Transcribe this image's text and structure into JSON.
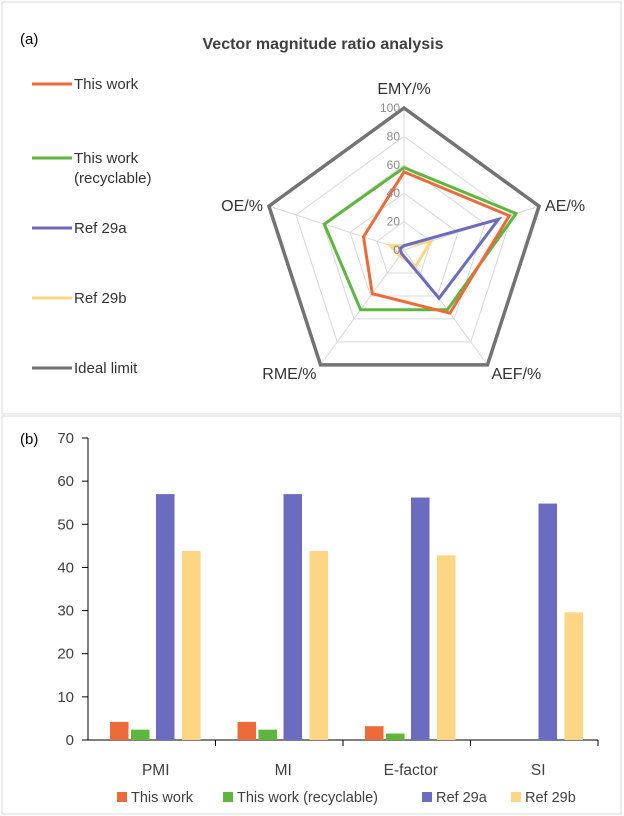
{
  "radar": {
    "panel_label": "(a)",
    "chart_data": {
      "type": "radar",
      "title": "Vector magnitude ratio analysis",
      "axes": [
        "EMY/%",
        "AE/%",
        "AEF/%",
        "RME/%",
        "OE/%"
      ],
      "rlim": [
        0,
        100
      ],
      "ticks": [
        0,
        20,
        40,
        60,
        80,
        100
      ],
      "series": [
        {
          "name": "This work",
          "color": "#ed6b3a",
          "values": [
            55,
            78,
            55,
            38,
            30
          ]
        },
        {
          "name": "This work\n(recyclable)",
          "color": "#5fb63f",
          "values": [
            58,
            83,
            52,
            52,
            59
          ]
        },
        {
          "name": "Ref 29a",
          "color": "#6b6bbf",
          "values": [
            3,
            70,
            42,
            3,
            3
          ]
        },
        {
          "name": "Ref 29b",
          "color": "#fcd685",
          "values": [
            3,
            20,
            14,
            5,
            10
          ]
        },
        {
          "name": "Ideal limit",
          "color": "#737373",
          "values": [
            100,
            100,
            100,
            100,
            100
          ]
        }
      ],
      "legend": "left"
    }
  },
  "bars": {
    "panel_label": "(b)",
    "chart_data": {
      "type": "bar",
      "categories": [
        "PMI",
        "MI",
        "E-factor",
        "SI"
      ],
      "series": [
        {
          "name": "This work",
          "color": "#ed6b3a",
          "values": [
            4.2,
            4.2,
            3.2,
            0
          ]
        },
        {
          "name": "This work (recyclable)",
          "color": "#5fb63f",
          "values": [
            2.4,
            2.4,
            1.5,
            0
          ]
        },
        {
          "name": "Ref 29a",
          "color": "#6b6bbf",
          "values": [
            57,
            57,
            56.2,
            54.8
          ]
        },
        {
          "name": "Ref 29b",
          "color": "#fcd685",
          "values": [
            43.8,
            43.8,
            42.8,
            29.6
          ]
        }
      ],
      "ylim": [
        0,
        70
      ],
      "yticks": [
        0,
        10,
        20,
        30,
        40,
        50,
        60,
        70
      ],
      "legend": "bottom"
    }
  }
}
